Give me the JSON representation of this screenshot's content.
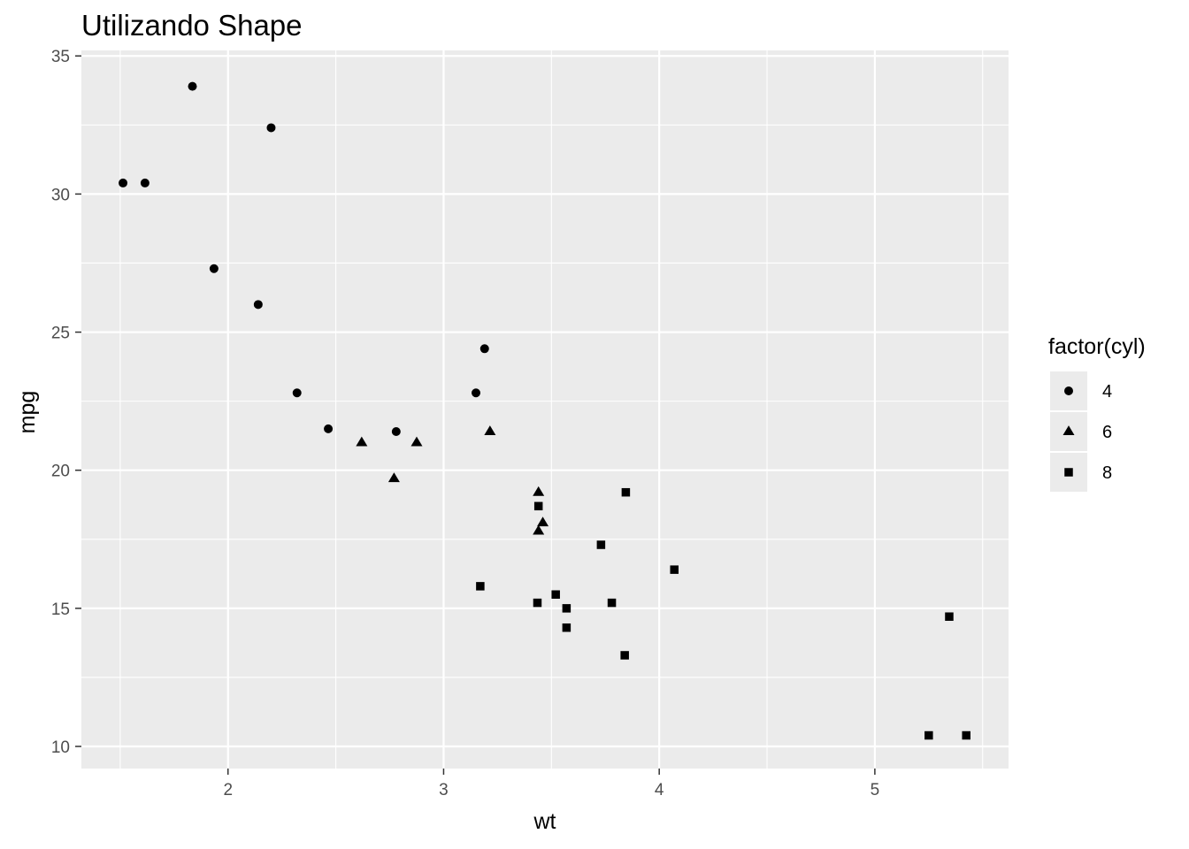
{
  "chart_data": {
    "type": "scatter",
    "title": "Utilizando Shape",
    "xlabel": "wt",
    "ylabel": "mpg",
    "xlim": [
      1.32,
      5.62
    ],
    "ylim": [
      9.2,
      35.2
    ],
    "x_ticks": [
      2,
      3,
      4,
      5
    ],
    "y_ticks": [
      10,
      15,
      20,
      25,
      30,
      35
    ],
    "grid": true,
    "legend": {
      "title": "factor(cyl)",
      "position": "right",
      "entries": [
        {
          "label": "4",
          "shape": "circle"
        },
        {
          "label": "6",
          "shape": "triangle"
        },
        {
          "label": "8",
          "shape": "square"
        }
      ]
    },
    "colors": {
      "panel": "#ebebeb",
      "grid": "#ffffff",
      "points": "#000000"
    },
    "series": [
      {
        "name": "4",
        "shape": "circle",
        "points": [
          [
            2.32,
            22.8
          ],
          [
            3.19,
            24.4
          ],
          [
            3.15,
            22.8
          ],
          [
            2.2,
            32.4
          ],
          [
            1.615,
            30.4
          ],
          [
            1.835,
            33.9
          ],
          [
            2.465,
            21.5
          ],
          [
            1.935,
            27.3
          ],
          [
            2.14,
            26.0
          ],
          [
            1.513,
            30.4
          ],
          [
            2.78,
            21.4
          ]
        ]
      },
      {
        "name": "6",
        "shape": "triangle",
        "points": [
          [
            2.62,
            21.0
          ],
          [
            2.875,
            21.0
          ],
          [
            3.215,
            21.4
          ],
          [
            3.46,
            18.1
          ],
          [
            3.44,
            19.2
          ],
          [
            3.44,
            17.8
          ],
          [
            2.77,
            19.7
          ]
        ]
      },
      {
        "name": "8",
        "shape": "square",
        "points": [
          [
            3.44,
            18.7
          ],
          [
            3.57,
            14.3
          ],
          [
            4.07,
            16.4
          ],
          [
            3.73,
            17.3
          ],
          [
            3.78,
            15.2
          ],
          [
            5.25,
            10.4
          ],
          [
            5.424,
            10.4
          ],
          [
            5.345,
            14.7
          ],
          [
            3.52,
            15.5
          ],
          [
            3.435,
            15.2
          ],
          [
            3.84,
            13.3
          ],
          [
            3.845,
            19.2
          ],
          [
            3.17,
            15.8
          ],
          [
            3.57,
            15.0
          ]
        ]
      }
    ]
  }
}
